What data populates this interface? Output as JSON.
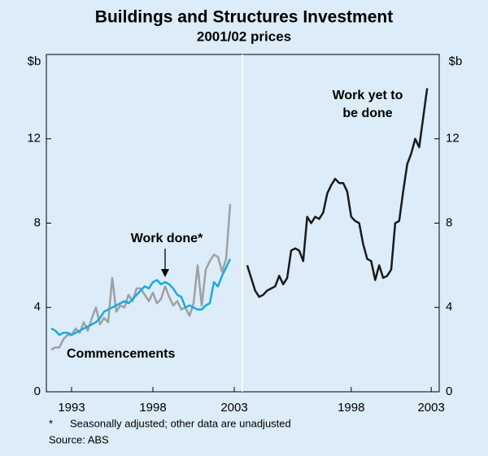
{
  "title": "Buildings and Structures Investment",
  "subtitle": "2001/02 prices",
  "footnote": [
    "*",
    "Seasonally adjusted; other data are unadjusted"
  ],
  "source": "Source: ABS",
  "chart_data": [
    {
      "type": "line",
      "y_label": "$b",
      "xlim": [
        1991.45,
        2003.5
      ],
      "xticks": [
        1993,
        1998,
        2003
      ],
      "ylim": [
        0,
        16
      ],
      "yticks": [
        0,
        4,
        8,
        12
      ],
      "x": [
        1991.75,
        1992,
        1992.25,
        1992.5,
        1992.75,
        1993,
        1993.25,
        1993.5,
        1993.75,
        1994,
        1994.25,
        1994.5,
        1994.75,
        1995,
        1995.25,
        1995.5,
        1995.75,
        1996,
        1996.25,
        1996.5,
        1996.75,
        1997,
        1997.25,
        1997.5,
        1997.75,
        1998,
        1998.25,
        1998.5,
        1998.75,
        1999,
        1999.25,
        1999.5,
        1999.75,
        2000,
        2000.25,
        2000.5,
        2000.75,
        2001,
        2001.25,
        2001.5,
        2001.75,
        2002,
        2002.25,
        2002.5,
        2002.75
      ],
      "series": [
        {
          "name": "Commencements",
          "color": "#a0a0a0",
          "values": [
            2.0,
            2.1,
            2.1,
            2.5,
            2.7,
            2.7,
            3.0,
            2.8,
            3.3,
            2.9,
            3.5,
            4.0,
            3.2,
            3.5,
            3.3,
            5.4,
            3.8,
            4.1,
            4.0,
            4.6,
            4.3,
            4.9,
            4.9,
            4.6,
            4.3,
            4.7,
            4.2,
            4.4,
            5.0,
            4.5,
            4.1,
            4.3,
            3.9,
            4.0,
            3.6,
            4.2,
            6.0,
            4.1,
            5.8,
            6.2,
            6.5,
            6.4,
            5.7,
            6.3,
            8.9
          ]
        },
        {
          "name": "Work done*",
          "color": "#1ba9e0",
          "values": [
            3.0,
            2.9,
            2.7,
            2.8,
            2.8,
            2.7,
            2.8,
            2.9,
            3.0,
            3.1,
            3.2,
            3.3,
            3.5,
            3.8,
            3.9,
            4.0,
            4.1,
            4.2,
            4.3,
            4.2,
            4.4,
            4.6,
            4.8,
            5.0,
            4.9,
            5.2,
            5.3,
            5.1,
            5.2,
            5.1,
            4.9,
            4.6,
            4.5,
            4.0,
            4.1,
            4.0,
            3.9,
            3.9,
            4.1,
            4.2,
            5.2,
            5.0,
            5.5,
            5.9,
            6.3
          ]
        }
      ]
    },
    {
      "type": "line",
      "y_label": "$b",
      "xlim": [
        1991.2,
        2003.5
      ],
      "xticks": [
        1998,
        2003
      ],
      "ylim": [
        0,
        16
      ],
      "yticks": [
        0,
        4,
        8,
        12
      ],
      "x": [
        1991.5,
        1991.75,
        1992,
        1992.25,
        1992.5,
        1992.75,
        1993,
        1993.25,
        1993.5,
        1993.75,
        1994,
        1994.25,
        1994.5,
        1994.75,
        1995,
        1995.25,
        1995.5,
        1995.75,
        1996,
        1996.25,
        1996.5,
        1996.75,
        1997,
        1997.25,
        1997.5,
        1997.75,
        1998,
        1998.25,
        1998.5,
        1998.75,
        1999,
        1999.25,
        1999.5,
        1999.75,
        2000,
        2000.25,
        2000.5,
        2000.75,
        2001,
        2001.25,
        2001.5,
        2001.75,
        2002,
        2002.25,
        2002.5,
        2002.75
      ],
      "series": [
        {
          "name": [
            "Work yet to",
            "be done"
          ],
          "color": "#1a1a1a",
          "values": [
            6.0,
            5.4,
            4.8,
            4.5,
            4.6,
            4.8,
            4.9,
            5.0,
            5.5,
            5.1,
            5.4,
            6.7,
            6.8,
            6.7,
            6.2,
            8.3,
            8.0,
            8.3,
            8.2,
            8.5,
            9.4,
            9.8,
            10.1,
            9.9,
            9.9,
            9.5,
            8.3,
            8.1,
            8.0,
            7.0,
            6.3,
            6.2,
            5.3,
            6.0,
            5.4,
            5.5,
            5.8,
            8.0,
            8.1,
            9.5,
            10.8,
            11.3,
            12.0,
            11.6,
            13.0,
            14.4
          ]
        }
      ]
    }
  ]
}
